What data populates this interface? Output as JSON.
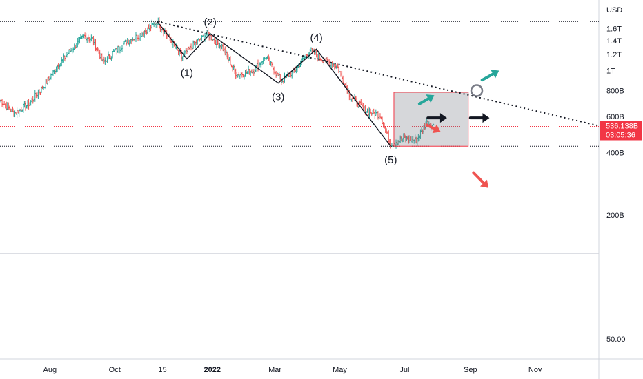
{
  "chart_data": {
    "type": "candlestick",
    "currency": "USD",
    "y_scale": "log",
    "ylim": [
      40,
      2200
    ],
    "xlim": [
      "2021-06-15",
      "2022-12-31"
    ],
    "y_ticks": [
      {
        "value": 1600,
        "label": "1.6T"
      },
      {
        "value": 1400,
        "label": "1.4T"
      },
      {
        "value": 1200,
        "label": "1.2T"
      },
      {
        "value": 1000,
        "label": "1T"
      },
      {
        "value": 800,
        "label": "800B"
      },
      {
        "value": 600,
        "label": "600B"
      },
      {
        "value": 400,
        "label": "400B"
      },
      {
        "value": 200,
        "label": "200B"
      },
      {
        "value": 50,
        "label": "50.00"
      }
    ],
    "x_ticks": [
      {
        "date": "2021-08-01",
        "label": "Aug"
      },
      {
        "date": "2021-10-01",
        "label": "Oct"
      },
      {
        "date": "2021-11-15",
        "label": "15"
      },
      {
        "date": "2022-01-01",
        "label": "2022"
      },
      {
        "date": "2022-03-01",
        "label": "Mar"
      },
      {
        "date": "2022-05-01",
        "label": "May"
      },
      {
        "date": "2022-07-01",
        "label": "Jul"
      },
      {
        "date": "2022-09-01",
        "label": "Sep"
      },
      {
        "date": "2022-11-01",
        "label": "Nov"
      }
    ],
    "price_path": [
      [
        "2021-06-15",
        720
      ],
      [
        "2021-06-28",
        620
      ],
      [
        "2021-07-12",
        690
      ],
      [
        "2021-07-26",
        840
      ],
      [
        "2021-08-08",
        1050
      ],
      [
        "2021-08-20",
        1250
      ],
      [
        "2021-09-02",
        1470
      ],
      [
        "2021-09-10",
        1420
      ],
      [
        "2021-09-20",
        1100
      ],
      [
        "2021-09-30",
        1230
      ],
      [
        "2021-10-12",
        1380
      ],
      [
        "2021-10-25",
        1490
      ],
      [
        "2021-11-10",
        1730
      ],
      [
        "2021-11-20",
        1470
      ],
      [
        "2021-12-03",
        1160
      ],
      [
        "2021-12-14",
        1330
      ],
      [
        "2021-12-27",
        1510
      ],
      [
        "2022-01-10",
        1300
      ],
      [
        "2022-01-24",
        950
      ],
      [
        "2022-02-08",
        1000
      ],
      [
        "2022-02-20",
        1170
      ],
      [
        "2022-03-07",
        890
      ],
      [
        "2022-03-20",
        1010
      ],
      [
        "2022-04-03",
        1260
      ],
      [
        "2022-04-12",
        1150
      ],
      [
        "2022-04-28",
        1060
      ],
      [
        "2022-05-11",
        750
      ],
      [
        "2022-05-25",
        640
      ],
      [
        "2022-06-08",
        610
      ],
      [
        "2022-06-18",
        440
      ],
      [
        "2022-06-30",
        470
      ],
      [
        "2022-07-12",
        460
      ],
      [
        "2022-07-22",
        560
      ],
      [
        "2022-07-28",
        540
      ]
    ],
    "wave_points": [
      {
        "label": "",
        "date": "2021-11-10",
        "value": 1730
      },
      {
        "label": "(1)",
        "date": "2021-12-08",
        "value": 1140
      },
      {
        "label": "(2)",
        "date": "2021-12-30",
        "value": 1510
      },
      {
        "label": "(3)",
        "date": "2022-03-04",
        "value": 870
      },
      {
        "label": "(4)",
        "date": "2022-04-09",
        "value": 1270
      },
      {
        "label": "(5)",
        "date": "2022-06-18",
        "value": 430
      }
    ],
    "trendline": {
      "start": {
        "date": "2021-11-10",
        "value": 1730
      },
      "end": {
        "date": "2022-12-31",
        "value": 540
      }
    },
    "resistance_line": 1730,
    "support_line": 430,
    "current_price": {
      "value": 536.138,
      "label": "536.138B",
      "countdown": "03:05:36"
    },
    "box": {
      "start": "2022-06-21",
      "end": "2022-08-30",
      "top": 785,
      "bottom": 430
    },
    "circle_marker": {
      "date": "2022-09-07",
      "value": 800
    },
    "arrows": [
      {
        "direction": "up",
        "color": "#26a69a",
        "from": {
          "date": "2022-09-12",
          "value": 900
        },
        "to": {
          "date": "2022-09-28",
          "value": 1000
        }
      },
      {
        "direction": "up",
        "color": "#26a69a",
        "from": {
          "date": "2022-07-15",
          "value": 690
        },
        "to": {
          "date": "2022-07-29",
          "value": 760
        }
      },
      {
        "direction": "right",
        "color": "#131722",
        "from": {
          "date": "2022-07-23",
          "value": 590
        },
        "to": {
          "date": "2022-08-10",
          "value": 590
        }
      },
      {
        "direction": "right",
        "color": "#131722",
        "from": {
          "date": "2022-09-01",
          "value": 590
        },
        "to": {
          "date": "2022-09-19",
          "value": 590
        }
      },
      {
        "direction": "down",
        "color": "#ef5350",
        "from": {
          "date": "2022-07-22",
          "value": 545
        },
        "to": {
          "date": "2022-08-04",
          "value": 505
        }
      },
      {
        "direction": "down",
        "color": "#ef5350",
        "from": {
          "date": "2022-09-04",
          "value": 320
        },
        "to": {
          "date": "2022-09-18",
          "value": 270
        }
      }
    ],
    "colors": {
      "up": "#26a69a",
      "down": "#ef5350",
      "price_badge": "#f23645"
    }
  }
}
